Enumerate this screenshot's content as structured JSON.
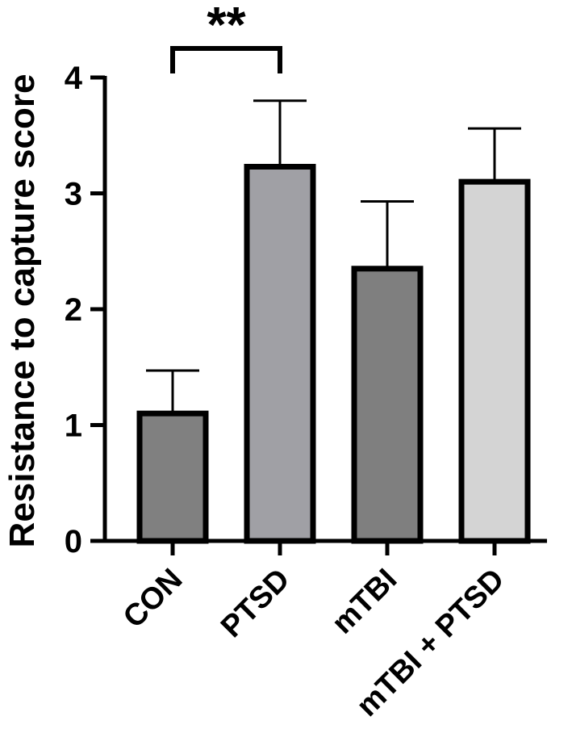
{
  "chart_data": {
    "type": "bar",
    "title": "",
    "xlabel": "",
    "ylabel": "Resistance to capture score",
    "categories": [
      "CON",
      "PTSD",
      "mTBI",
      "mTBI + PTSD"
    ],
    "values": [
      1.1,
      3.23,
      2.35,
      3.1
    ],
    "errors": [
      0.37,
      0.57,
      0.58,
      0.46
    ],
    "bar_colors": [
      "#808080",
      "#a0a0a5",
      "#7f7f7f",
      "#d4d4d4"
    ],
    "ylim": [
      0,
      4
    ],
    "yticks": [
      "0",
      "1",
      "2",
      "3",
      "4"
    ],
    "grid": false,
    "legend": "none",
    "significance": {
      "from": "CON",
      "to": "PTSD",
      "label": "**"
    }
  }
}
